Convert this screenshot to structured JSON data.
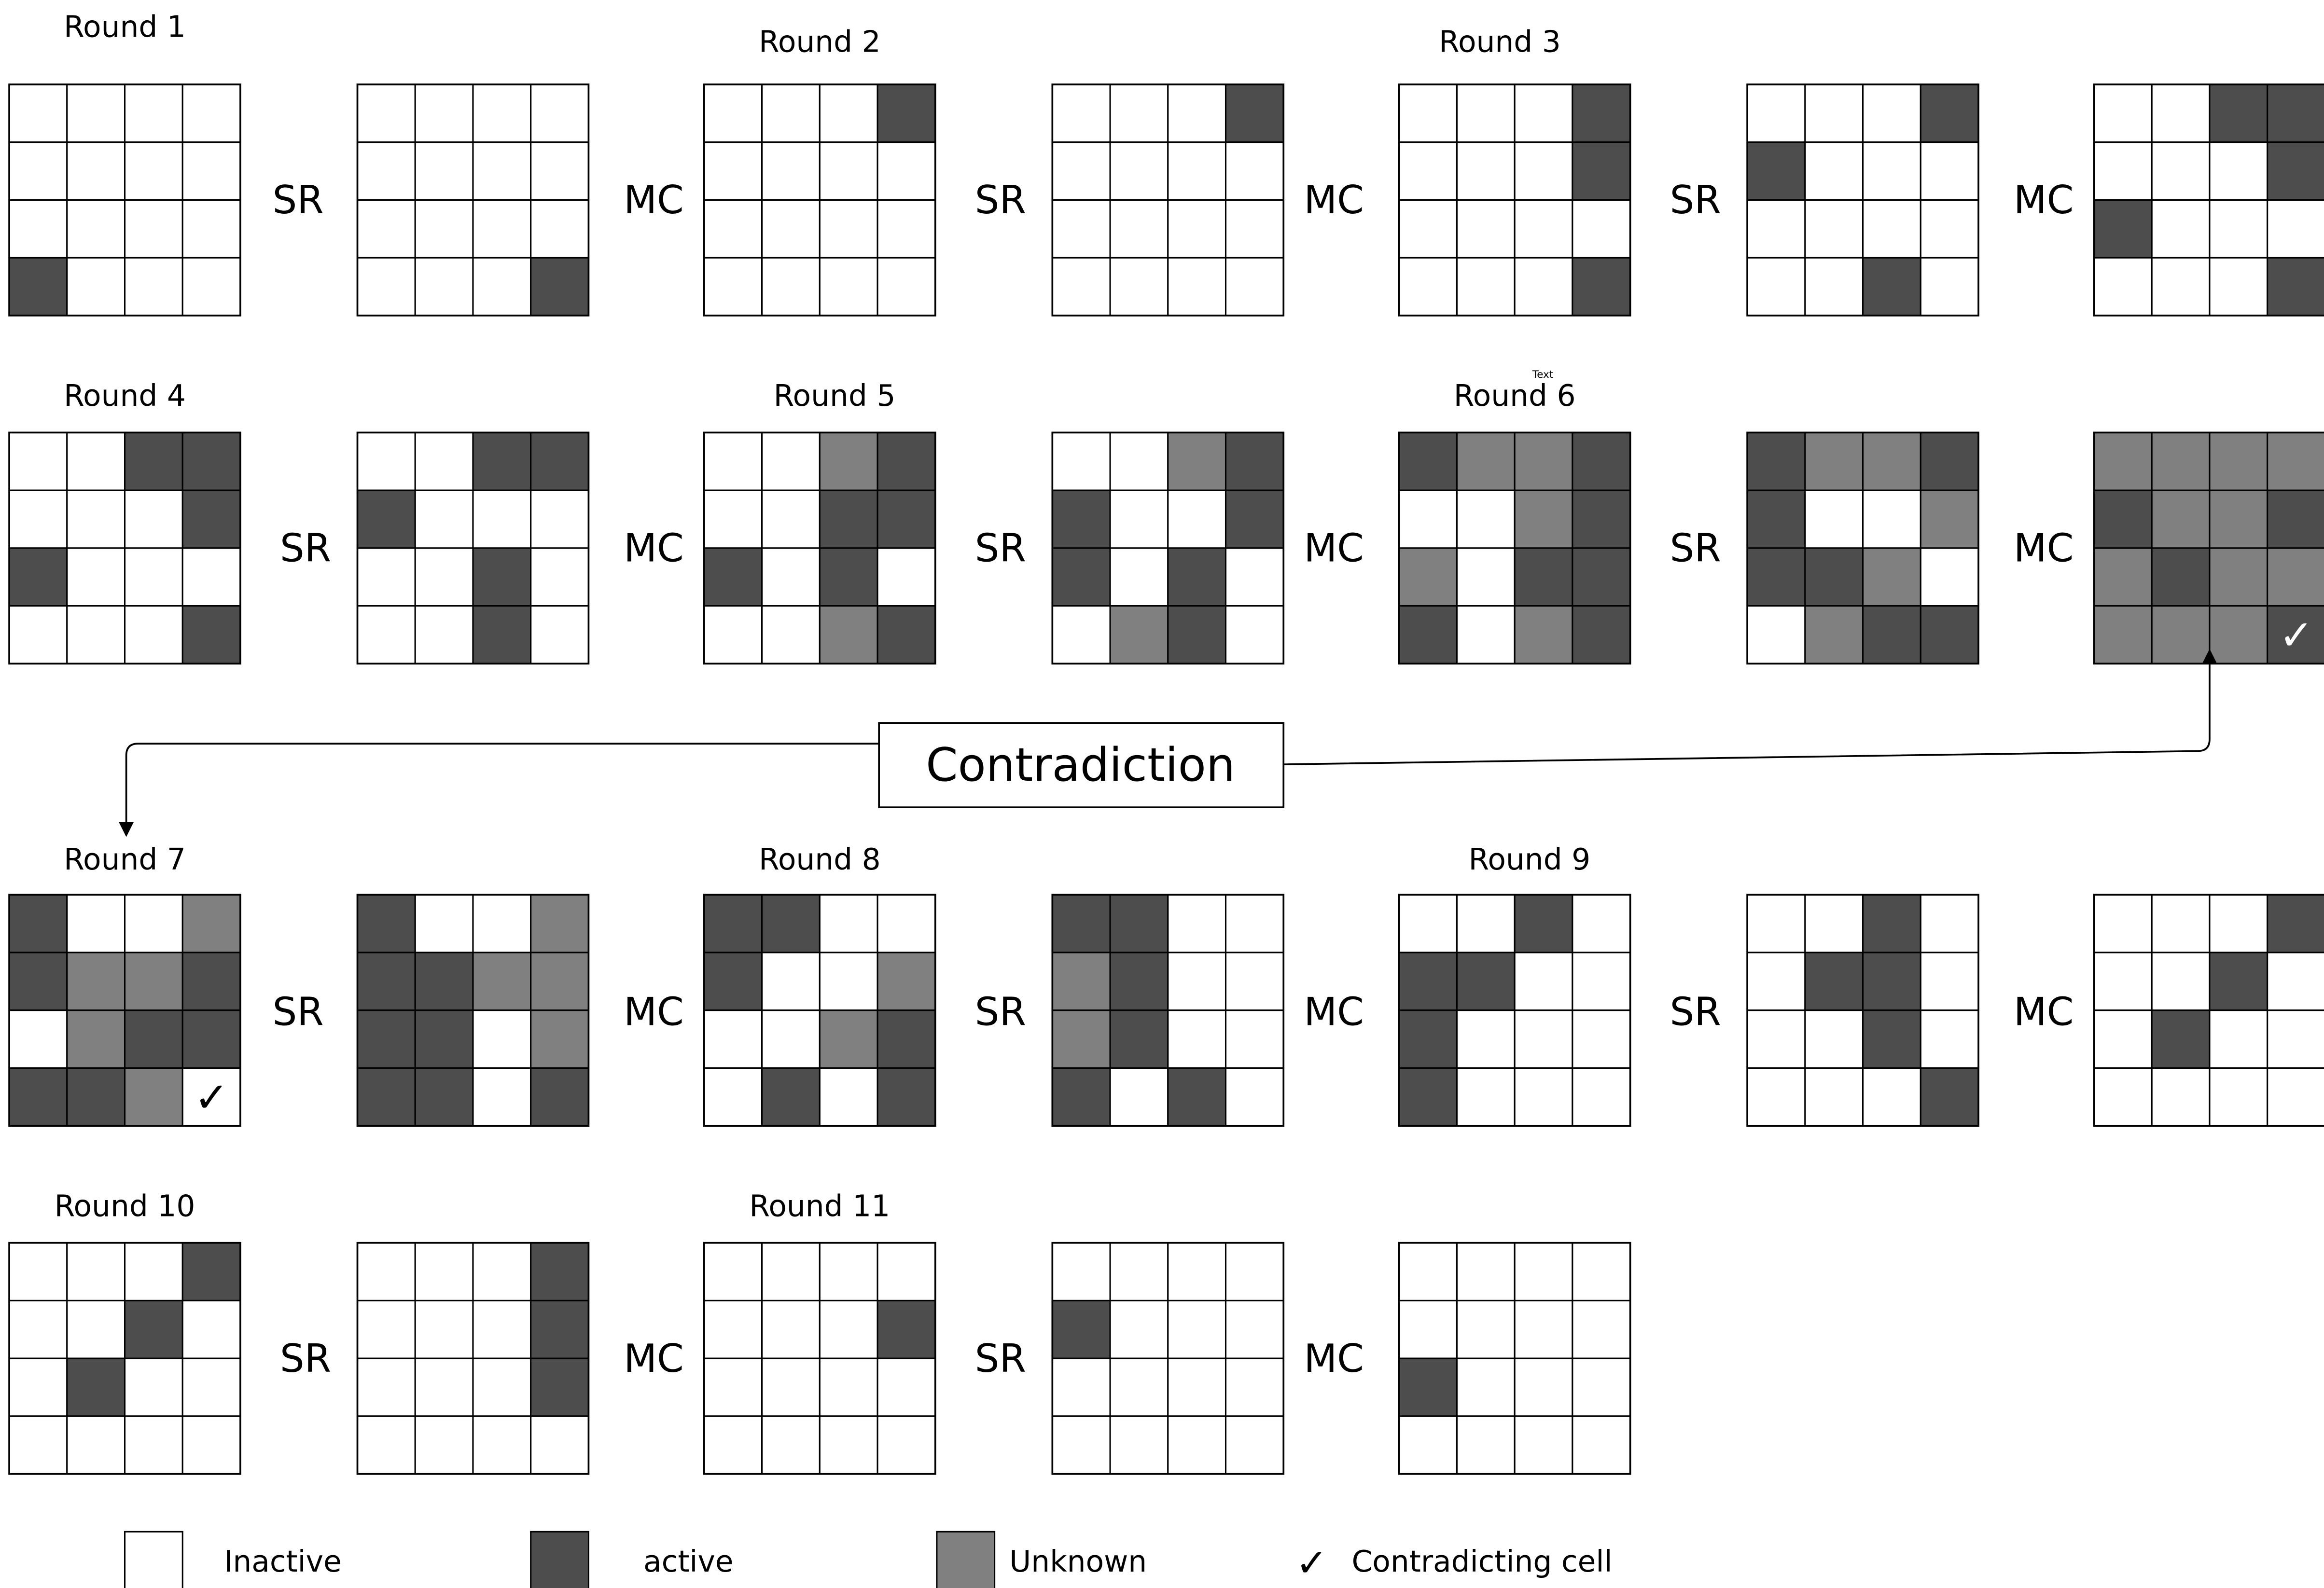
{
  "colors": {
    "inactive": "#ffffff",
    "active": "#4d4d4d",
    "unknown": "#808080",
    "line": "#000000"
  },
  "round_labels": [
    "Round 1",
    "Round 2",
    "Round 3",
    "Round 4",
    "Round 5",
    "Round 6",
    "Round 7",
    "Round 8",
    "Round 9",
    "Round 10",
    "Round 11"
  ],
  "operations": [
    "SR",
    "MC"
  ],
  "contradiction_label": "Contradiction",
  "tiny_text": "Text",
  "check_symbol": "✓",
  "legend": [
    {
      "state": "inactive",
      "label": "Inactive"
    },
    {
      "state": "active",
      "label": "active"
    },
    {
      "state": "unknown",
      "label": "Unknown"
    },
    {
      "state": "check",
      "label": "Contradicting cell"
    }
  ],
  "rows": [
    {
      "grids": [
        [
          "0000",
          "0000",
          "0000",
          "1000"
        ],
        [
          "0000",
          "0000",
          "0000",
          "0001"
        ],
        [
          "0001",
          "0000",
          "0000",
          "0000"
        ],
        [
          "0001",
          "0000",
          "0000",
          "0000"
        ],
        [
          "0001",
          "0001",
          "0000",
          "0001"
        ],
        [
          "0001",
          "1000",
          "0000",
          "0010"
        ],
        [
          "0011",
          "0001",
          "1000",
          "0001"
        ]
      ],
      "check": null
    },
    {
      "grids": [
        [
          "0011",
          "0001",
          "1000",
          "0001"
        ],
        [
          "0011",
          "1000",
          "0010",
          "0010"
        ],
        [
          "0021",
          "0011",
          "1010",
          "0021"
        ],
        [
          "0021",
          "1001",
          "1010",
          "0210"
        ],
        [
          "1221",
          "0021",
          "2011",
          "1021"
        ],
        [
          "1221",
          "1002",
          "1120",
          "0211"
        ],
        [
          "2222",
          "1221",
          "2122",
          "2221"
        ]
      ],
      "check": {
        "grid": 6,
        "row": 3,
        "col": 3
      }
    },
    {
      "grids": [
        [
          "1002",
          "1221",
          "0211",
          "1120"
        ],
        [
          "1002",
          "1122",
          "1102",
          "1101"
        ],
        [
          "1100",
          "1002",
          "0021",
          "0101"
        ],
        [
          "1100",
          "2100",
          "2100",
          "1010"
        ],
        [
          "0010",
          "1100",
          "1000",
          "1000"
        ],
        [
          "0010",
          "0110",
          "0010",
          "0001"
        ],
        [
          "0001",
          "0010",
          "0100",
          "0000"
        ]
      ],
      "check": {
        "grid": 0,
        "row": 3,
        "col": 3
      }
    },
    {
      "grids": [
        [
          "0001",
          "0010",
          "0100",
          "0000"
        ],
        [
          "0001",
          "0001",
          "0001",
          "0000"
        ],
        [
          "0000",
          "0001",
          "0000",
          "0000"
        ],
        [
          "0000",
          "1000",
          "0000",
          "0000"
        ],
        [
          "0000",
          "0000",
          "1000",
          "0000"
        ]
      ],
      "check": null
    }
  ]
}
